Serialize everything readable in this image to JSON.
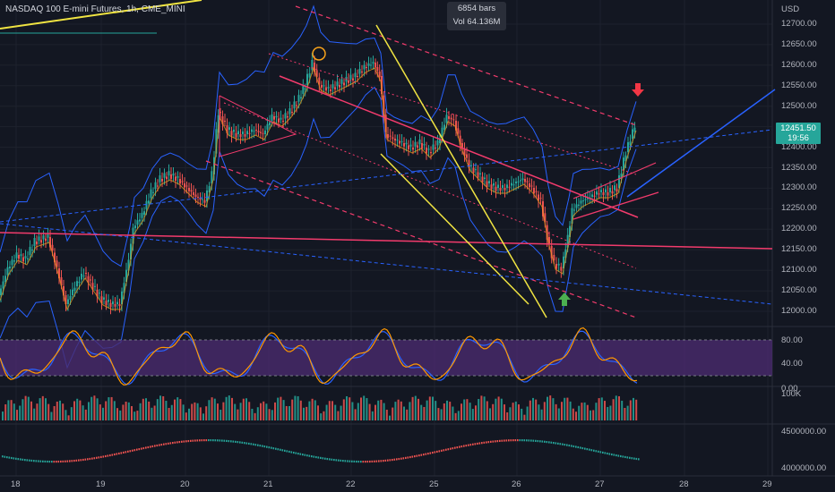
{
  "header": {
    "symbol_title": "NASDAQ 100 E-mini Futures, 1h, CME_MINI",
    "bars_label": "6854 bars",
    "vol_label": "Vol 64.136M",
    "currency": "USD"
  },
  "price_axis": {
    "ticks": [
      "12700.00",
      "12650.00",
      "12600.00",
      "12550.00",
      "12500.00",
      "12400.00",
      "12350.00",
      "12300.00",
      "12250.00",
      "12200.00",
      "12150.00",
      "12100.00",
      "12050.00",
      "12000.00"
    ],
    "last_price": "12451.50",
    "countdown": "19:56"
  },
  "stoch_axis": {
    "ticks": [
      "80.00",
      "40.00"
    ]
  },
  "volume_axis": {
    "ticks": [
      "0.00",
      "100K"
    ]
  },
  "obv_axis": {
    "ticks": [
      "4500000.00",
      "4000000.00"
    ]
  },
  "time_axis": {
    "ticks": [
      "18",
      "19",
      "20",
      "21",
      "22",
      "25",
      "26",
      "27",
      "28",
      "29"
    ]
  },
  "colors": {
    "background": "#131722",
    "up": "#26a69a",
    "down": "#ef5350",
    "bollinger": "#2962ff",
    "stoch_band": "#4a2a6e",
    "trend_pink": "#f23b6c",
    "trend_yellow": "#f0e442",
    "arrow_up": "#4caf50",
    "arrow_down": "#f23645"
  },
  "annotations": {
    "down_arrow": "arrow-down-icon",
    "up_arrow": "arrow-up-icon",
    "top_circle": "circle-marker-icon"
  }
}
